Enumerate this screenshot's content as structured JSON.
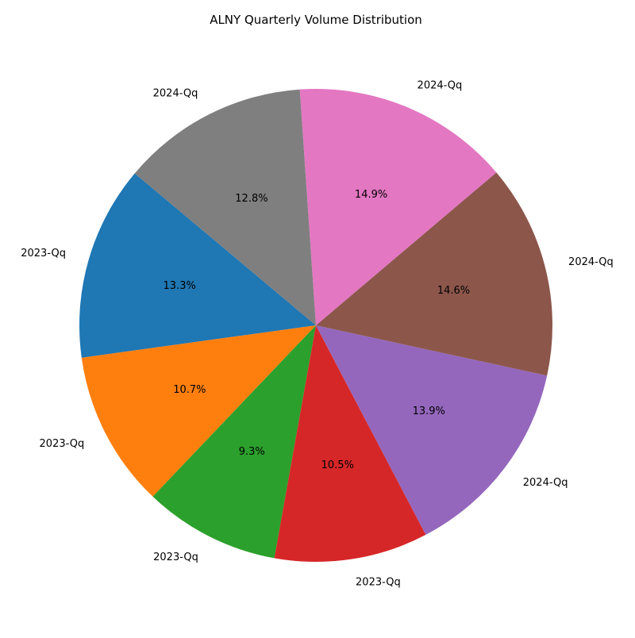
{
  "chart_data": {
    "type": "pie",
    "title": "ALNY Quarterly Volume Distribution",
    "labels": [
      "2023-Qq",
      "2023-Qq",
      "2023-Qq",
      "2023-Qq",
      "2024-Qq",
      "2024-Qq",
      "2024-Qq",
      "2024-Qq"
    ],
    "values": [
      13.3,
      10.7,
      9.3,
      10.5,
      13.9,
      14.6,
      14.9,
      12.8
    ],
    "value_labels": [
      "13.3%",
      "10.7%",
      "9.3%",
      "10.5%",
      "13.9%",
      "14.6%",
      "14.9%",
      "12.8%"
    ],
    "colors": [
      "#1f77b4",
      "#ff7f0e",
      "#2ca02c",
      "#d62728",
      "#9467bd",
      "#8c564b",
      "#e377c2",
      "#7f7f7f"
    ],
    "start_angle_deg": 140,
    "direction": "counterclockwise",
    "legend": "none"
  }
}
